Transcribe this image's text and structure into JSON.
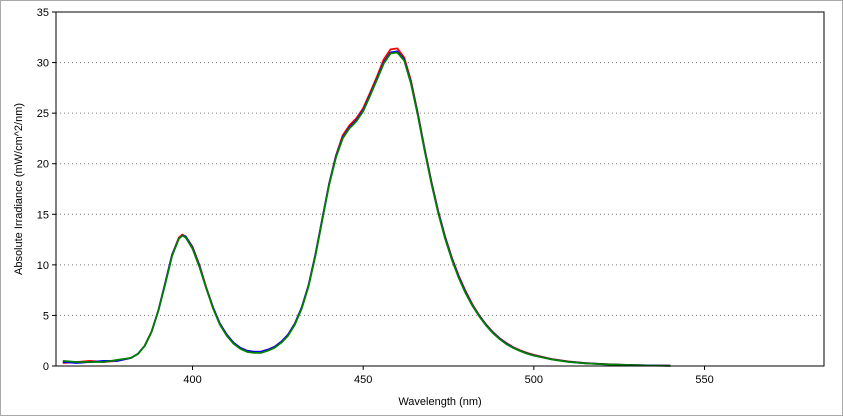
{
  "chart_data": {
    "type": "line",
    "title": "",
    "xlabel": "Wavelength (nm)",
    "ylabel": "Absolute Irradiance (mW/cm^2/nm)",
    "xlim": [
      360,
      585
    ],
    "ylim": [
      0,
      35
    ],
    "x_ticks": [
      400,
      450,
      500,
      550
    ],
    "y_ticks": [
      0,
      5,
      10,
      15,
      20,
      25,
      30,
      35
    ],
    "grid": true,
    "legend": "none",
    "series": [
      {
        "color": "#ff0000",
        "x": [
          362,
          366,
          370,
          374,
          378,
          382,
          384,
          386,
          388,
          390,
          392,
          394,
          396,
          397,
          398,
          400,
          402,
          404,
          406,
          408,
          410,
          412,
          414,
          416,
          418,
          420,
          422,
          424,
          426,
          428,
          430,
          432,
          434,
          436,
          438,
          440,
          442,
          444,
          446,
          448,
          450,
          452,
          454,
          456,
          458,
          460,
          462,
          464,
          466,
          468,
          470,
          472,
          474,
          476,
          478,
          480,
          482,
          484,
          486,
          488,
          490,
          492,
          494,
          496,
          498,
          500,
          505,
          510,
          515,
          520,
          525,
          530,
          535,
          540
        ],
        "y": [
          0.3,
          0.4,
          0.5,
          0.4,
          0.5,
          0.8,
          1.2,
          2.0,
          3.4,
          5.5,
          8.2,
          11.0,
          12.7,
          13.0,
          12.8,
          11.8,
          10.0,
          7.8,
          5.8,
          4.2,
          3.1,
          2.3,
          1.8,
          1.5,
          1.4,
          1.4,
          1.6,
          1.9,
          2.4,
          3.1,
          4.2,
          5.8,
          8.0,
          11.0,
          14.5,
          18.0,
          20.8,
          22.8,
          23.8,
          24.5,
          25.5,
          27.0,
          28.6,
          30.3,
          31.3,
          31.4,
          30.5,
          28.2,
          25.0,
          21.5,
          18.2,
          15.3,
          12.8,
          10.7,
          8.9,
          7.4,
          6.1,
          5.0,
          4.1,
          3.35,
          2.75,
          2.25,
          1.85,
          1.55,
          1.3,
          1.1,
          0.7,
          0.45,
          0.3,
          0.2,
          0.13,
          0.08,
          0.05,
          0.03
        ]
      },
      {
        "color": "#0000ff",
        "x": [
          362,
          366,
          370,
          374,
          378,
          382,
          384,
          386,
          388,
          390,
          392,
          394,
          396,
          397,
          398,
          400,
          402,
          404,
          406,
          408,
          410,
          412,
          414,
          416,
          418,
          420,
          422,
          424,
          426,
          428,
          430,
          432,
          434,
          436,
          438,
          440,
          442,
          444,
          446,
          448,
          450,
          452,
          454,
          456,
          458,
          460,
          462,
          464,
          466,
          468,
          470,
          472,
          474,
          476,
          478,
          480,
          482,
          484,
          486,
          488,
          490,
          492,
          494,
          496,
          498,
          500,
          505,
          510,
          515,
          520,
          525,
          530,
          535,
          540
        ],
        "y": [
          0.4,
          0.3,
          0.4,
          0.5,
          0.5,
          0.8,
          1.2,
          2.0,
          3.4,
          5.5,
          8.2,
          11.0,
          12.6,
          12.9,
          12.8,
          11.7,
          9.9,
          7.7,
          5.8,
          4.2,
          3.1,
          2.3,
          1.8,
          1.5,
          1.4,
          1.4,
          1.6,
          1.9,
          2.4,
          3.1,
          4.2,
          5.8,
          8.0,
          11.0,
          14.5,
          18.0,
          20.7,
          22.6,
          23.6,
          24.3,
          25.3,
          26.8,
          28.4,
          30.0,
          31.0,
          31.1,
          30.3,
          28.0,
          24.9,
          21.4,
          18.1,
          15.2,
          12.7,
          10.6,
          8.8,
          7.3,
          6.0,
          4.95,
          4.05,
          3.3,
          2.7,
          2.2,
          1.8,
          1.5,
          1.25,
          1.05,
          0.68,
          0.43,
          0.28,
          0.19,
          0.12,
          0.08,
          0.05,
          0.03
        ]
      },
      {
        "color": "#008000",
        "x": [
          362,
          366,
          370,
          374,
          378,
          382,
          384,
          386,
          388,
          390,
          392,
          394,
          396,
          397,
          398,
          400,
          402,
          404,
          406,
          408,
          410,
          412,
          414,
          416,
          418,
          420,
          422,
          424,
          426,
          428,
          430,
          432,
          434,
          436,
          438,
          440,
          442,
          444,
          446,
          448,
          450,
          452,
          454,
          456,
          458,
          460,
          462,
          464,
          466,
          468,
          470,
          472,
          474,
          476,
          478,
          480,
          482,
          484,
          486,
          488,
          490,
          492,
          494,
          496,
          498,
          500,
          505,
          510,
          515,
          520,
          525,
          530,
          535,
          540
        ],
        "y": [
          0.5,
          0.4,
          0.4,
          0.4,
          0.6,
          0.8,
          1.2,
          2.0,
          3.4,
          5.5,
          8.1,
          10.9,
          12.6,
          12.9,
          12.7,
          11.6,
          9.8,
          7.7,
          5.7,
          4.1,
          3.0,
          2.2,
          1.7,
          1.4,
          1.3,
          1.3,
          1.5,
          1.8,
          2.3,
          3.0,
          4.1,
          5.7,
          7.9,
          10.9,
          14.4,
          17.9,
          20.6,
          22.5,
          23.5,
          24.2,
          25.2,
          26.7,
          28.3,
          29.9,
          30.9,
          31.0,
          30.2,
          27.9,
          24.8,
          21.3,
          18.0,
          15.1,
          12.6,
          10.5,
          8.7,
          7.2,
          5.95,
          4.9,
          4.0,
          3.25,
          2.65,
          2.15,
          1.78,
          1.48,
          1.23,
          1.03,
          0.66,
          0.42,
          0.27,
          0.18,
          0.12,
          0.07,
          0.04,
          0.02
        ]
      }
    ]
  }
}
